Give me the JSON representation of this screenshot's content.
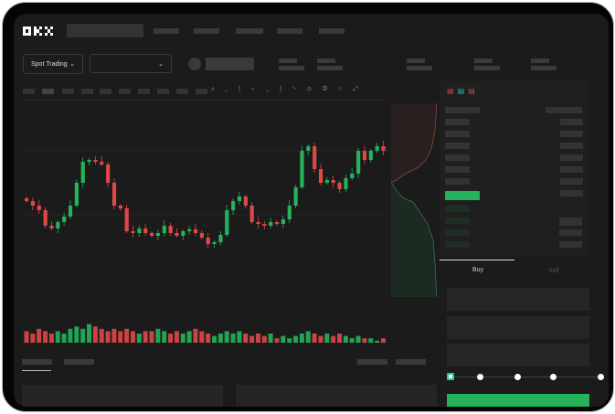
{
  "header": {
    "logo": "OKX"
  },
  "selectors": {
    "market_type": "Spot Trading",
    "pair": ""
  },
  "trade": {
    "tabs": [
      "Buy",
      "Sell"
    ],
    "active_tab": "Buy",
    "slider_percent": 0
  },
  "colors": {
    "up": "#25b25b",
    "down": "#e04848",
    "background": "#1b1b1b"
  },
  "chart": {
    "type": "candlestick",
    "closes": [
      75,
      70,
      65,
      48,
      45,
      52,
      58,
      70,
      95,
      118,
      120,
      118,
      115,
      95,
      70,
      67,
      42,
      40,
      45,
      40,
      37,
      40,
      48,
      40,
      37,
      42,
      44,
      40,
      35,
      28,
      30,
      38,
      65,
      75,
      80,
      70,
      52,
      50,
      48,
      52,
      50,
      55,
      70,
      90,
      130,
      135,
      110,
      95,
      98,
      95,
      88,
      100,
      105,
      130,
      120,
      130,
      135,
      130
    ],
    "volumes": [
      6,
      5,
      7,
      6,
      5,
      6,
      5,
      7,
      8,
      7,
      9,
      8,
      7,
      6,
      7,
      6,
      7,
      6,
      5,
      6,
      6,
      7,
      6,
      5,
      6,
      5,
      6,
      7,
      6,
      5,
      4,
      5,
      6,
      5,
      6,
      5,
      4,
      5,
      4,
      5,
      3,
      4,
      3,
      4,
      5,
      6,
      5,
      4,
      5,
      4,
      5,
      4,
      3,
      4,
      3,
      3,
      2,
      3
    ]
  }
}
